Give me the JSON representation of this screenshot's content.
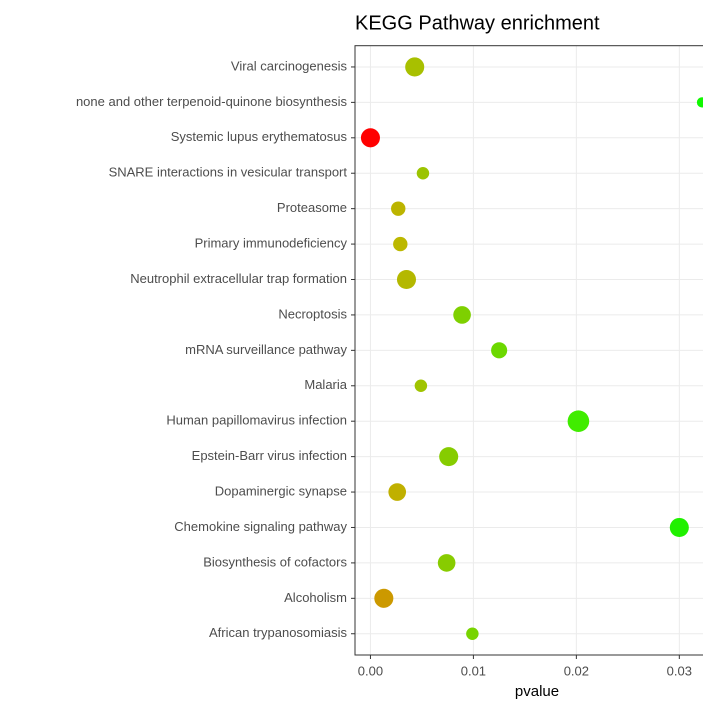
{
  "chart_data": {
    "type": "scatter",
    "title": "KEGG Pathway enrichment",
    "x_label": "pvalue",
    "categories": [
      "Viral carcinogenesis",
      "none and other terpenoid-quinone biosynthesis",
      "Systemic lupus erythematosus",
      "SNARE interactions in vesicular transport",
      "Proteasome",
      "Primary immunodeficiency",
      "Neutrophil extracellular trap formation",
      "Necroptosis",
      "mRNA surveillance pathway",
      "Malaria",
      "Human papillomavirus infection",
      "Epstein-Barr virus infection",
      "Dopaminergic synapse",
      "Chemokine signaling pathway",
      "Biosynthesis of cofactors",
      "Alcoholism",
      "African trypanosomiasis"
    ],
    "values": [
      0.0043,
      0.0322,
      0.0,
      0.0051,
      0.0027,
      0.0029,
      0.0035,
      0.0089,
      0.0125,
      0.0049,
      0.0202,
      0.0076,
      0.0026,
      0.03,
      0.0074,
      0.0013,
      0.0099
    ],
    "sizes": [
      7,
      2,
      7,
      3,
      4,
      4,
      7,
      6,
      5,
      3,
      9,
      7,
      6,
      7,
      6,
      7,
      3
    ],
    "colors": [
      "#a8c000",
      "#10f800",
      "#ff0000",
      "#9cc400",
      "#bcb400",
      "#bcb800",
      "#b4b800",
      "#7ed000",
      "#6cd800",
      "#a0c400",
      "#40ec00",
      "#86cc00",
      "#c0b000",
      "#20f000",
      "#88cc00",
      "#cc9900",
      "#78d400"
    ],
    "xlim": [
      -0.0015,
      0.0323
    ],
    "xticks": [
      {
        "value": 0,
        "label": "0.00"
      },
      {
        "value": 0.01,
        "label": "0.01"
      },
      {
        "value": 0.02,
        "label": "0.02"
      },
      {
        "value": 0.03,
        "label": "0.03"
      }
    ],
    "grid": true
  }
}
